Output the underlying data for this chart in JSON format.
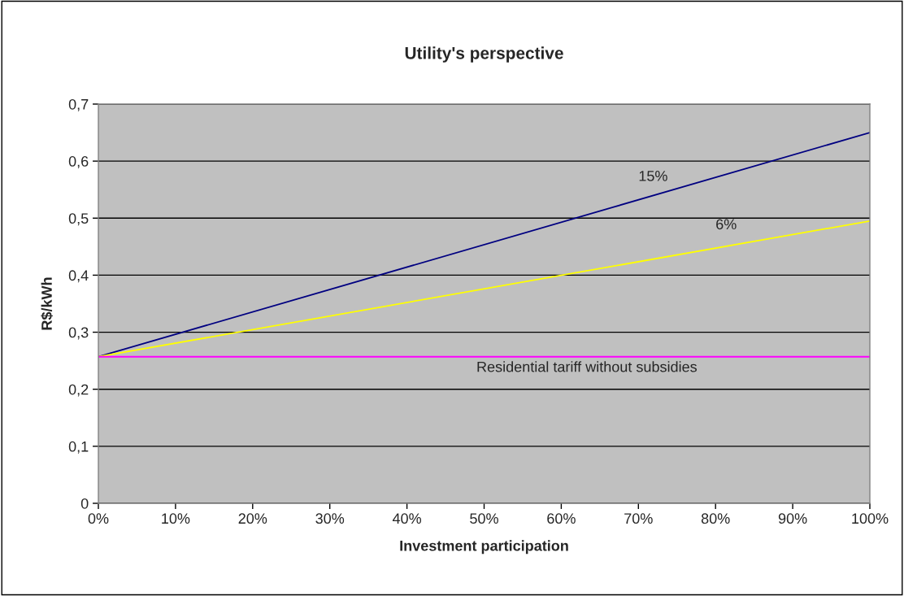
{
  "chart_data": {
    "type": "line",
    "title": "Utility's perspective",
    "xlabel": "Investment participation",
    "ylabel": "R$/kWh",
    "x": [
      0,
      100
    ],
    "series": [
      {
        "name": "15%",
        "color": "#000080",
        "values": [
          0.257,
          0.65
        ]
      },
      {
        "name": "6%",
        "color": "#ffff00",
        "values": [
          0.257,
          0.495
        ]
      }
    ],
    "ref_lines": [
      {
        "axis": "y",
        "value": 0.257,
        "label": "Residential tariff without subsidies",
        "color": "#ff00ff"
      }
    ],
    "xlim": [
      0,
      100
    ],
    "xticks": [
      {
        "value": 0,
        "label": "0%"
      },
      {
        "value": 10,
        "label": "10%"
      },
      {
        "value": 20,
        "label": "20%"
      },
      {
        "value": 30,
        "label": "30%"
      },
      {
        "value": 40,
        "label": "40%"
      },
      {
        "value": 50,
        "label": "50%"
      },
      {
        "value": 60,
        "label": "60%"
      },
      {
        "value": 70,
        "label": "70%"
      },
      {
        "value": 80,
        "label": "80%"
      },
      {
        "value": 90,
        "label": "90%"
      },
      {
        "value": 100,
        "label": "100%"
      }
    ],
    "ylim": [
      0,
      0.7
    ],
    "yticks": [
      {
        "value": 0,
        "label": "0"
      },
      {
        "value": 0.1,
        "label": "0,1"
      },
      {
        "value": 0.2,
        "label": "0,2"
      },
      {
        "value": 0.3,
        "label": "0,3"
      },
      {
        "value": 0.4,
        "label": "0,4"
      },
      {
        "value": 0.5,
        "label": "0,5"
      },
      {
        "value": 0.6,
        "label": "0,6"
      },
      {
        "value": 0.7,
        "label": "0,7"
      }
    ],
    "grid": "y",
    "legend": false,
    "marker": "none",
    "line_style": "solid"
  }
}
